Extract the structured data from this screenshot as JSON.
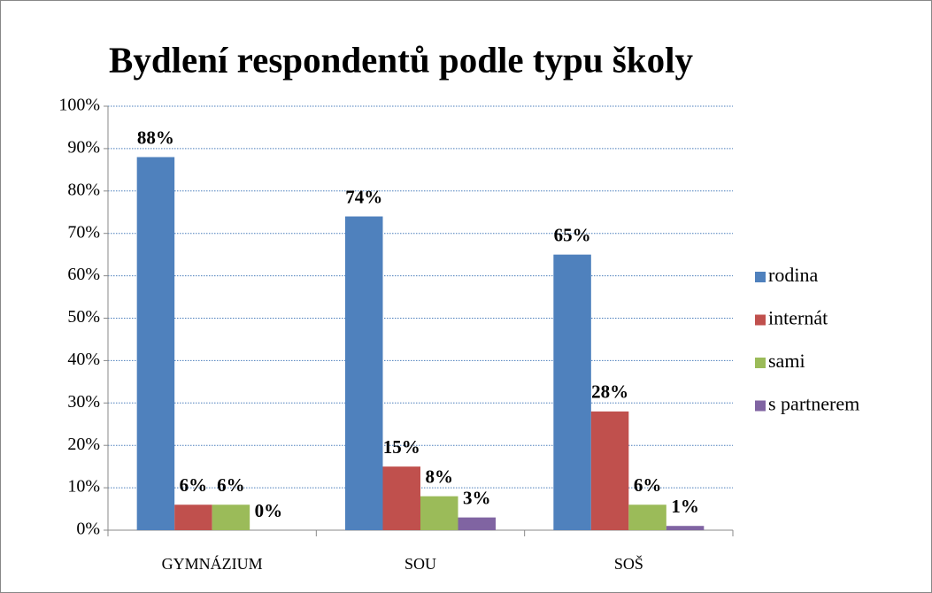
{
  "chart_data": {
    "type": "bar",
    "title": "Bydlení respondentů podle typu školy",
    "categories": [
      "GYMNÁZIUM",
      "SOU",
      "SOŠ"
    ],
    "series": [
      {
        "name": "rodina",
        "color": "#4f81bd",
        "values": [
          88,
          74,
          65
        ],
        "value_labels": [
          "88%",
          "74%",
          "65%"
        ]
      },
      {
        "name": "internát",
        "color": "#c0504d",
        "values": [
          6,
          15,
          28
        ],
        "value_labels": [
          "6%",
          "15%",
          "28%"
        ]
      },
      {
        "name": "sami",
        "color": "#9bbb59",
        "values": [
          6,
          8,
          6
        ],
        "value_labels": [
          "6%",
          "8%",
          "6%"
        ]
      },
      {
        "name": "s partnerem",
        "color": "#8064a2",
        "values": [
          0,
          3,
          1
        ],
        "value_labels": [
          "0%",
          "3%",
          "1%"
        ]
      }
    ],
    "ylim": [
      0,
      100
    ],
    "yticks": [
      {
        "value": 0,
        "label": "0%"
      },
      {
        "value": 10,
        "label": "10%"
      },
      {
        "value": 20,
        "label": "20%"
      },
      {
        "value": 30,
        "label": "30%"
      },
      {
        "value": 40,
        "label": "40%"
      },
      {
        "value": 50,
        "label": "50%"
      },
      {
        "value": 60,
        "label": "60%"
      },
      {
        "value": 70,
        "label": "70%"
      },
      {
        "value": 80,
        "label": "80%"
      },
      {
        "value": 90,
        "label": "90%"
      },
      {
        "value": 100,
        "label": "100%"
      }
    ],
    "grid": true,
    "legend": "right"
  }
}
